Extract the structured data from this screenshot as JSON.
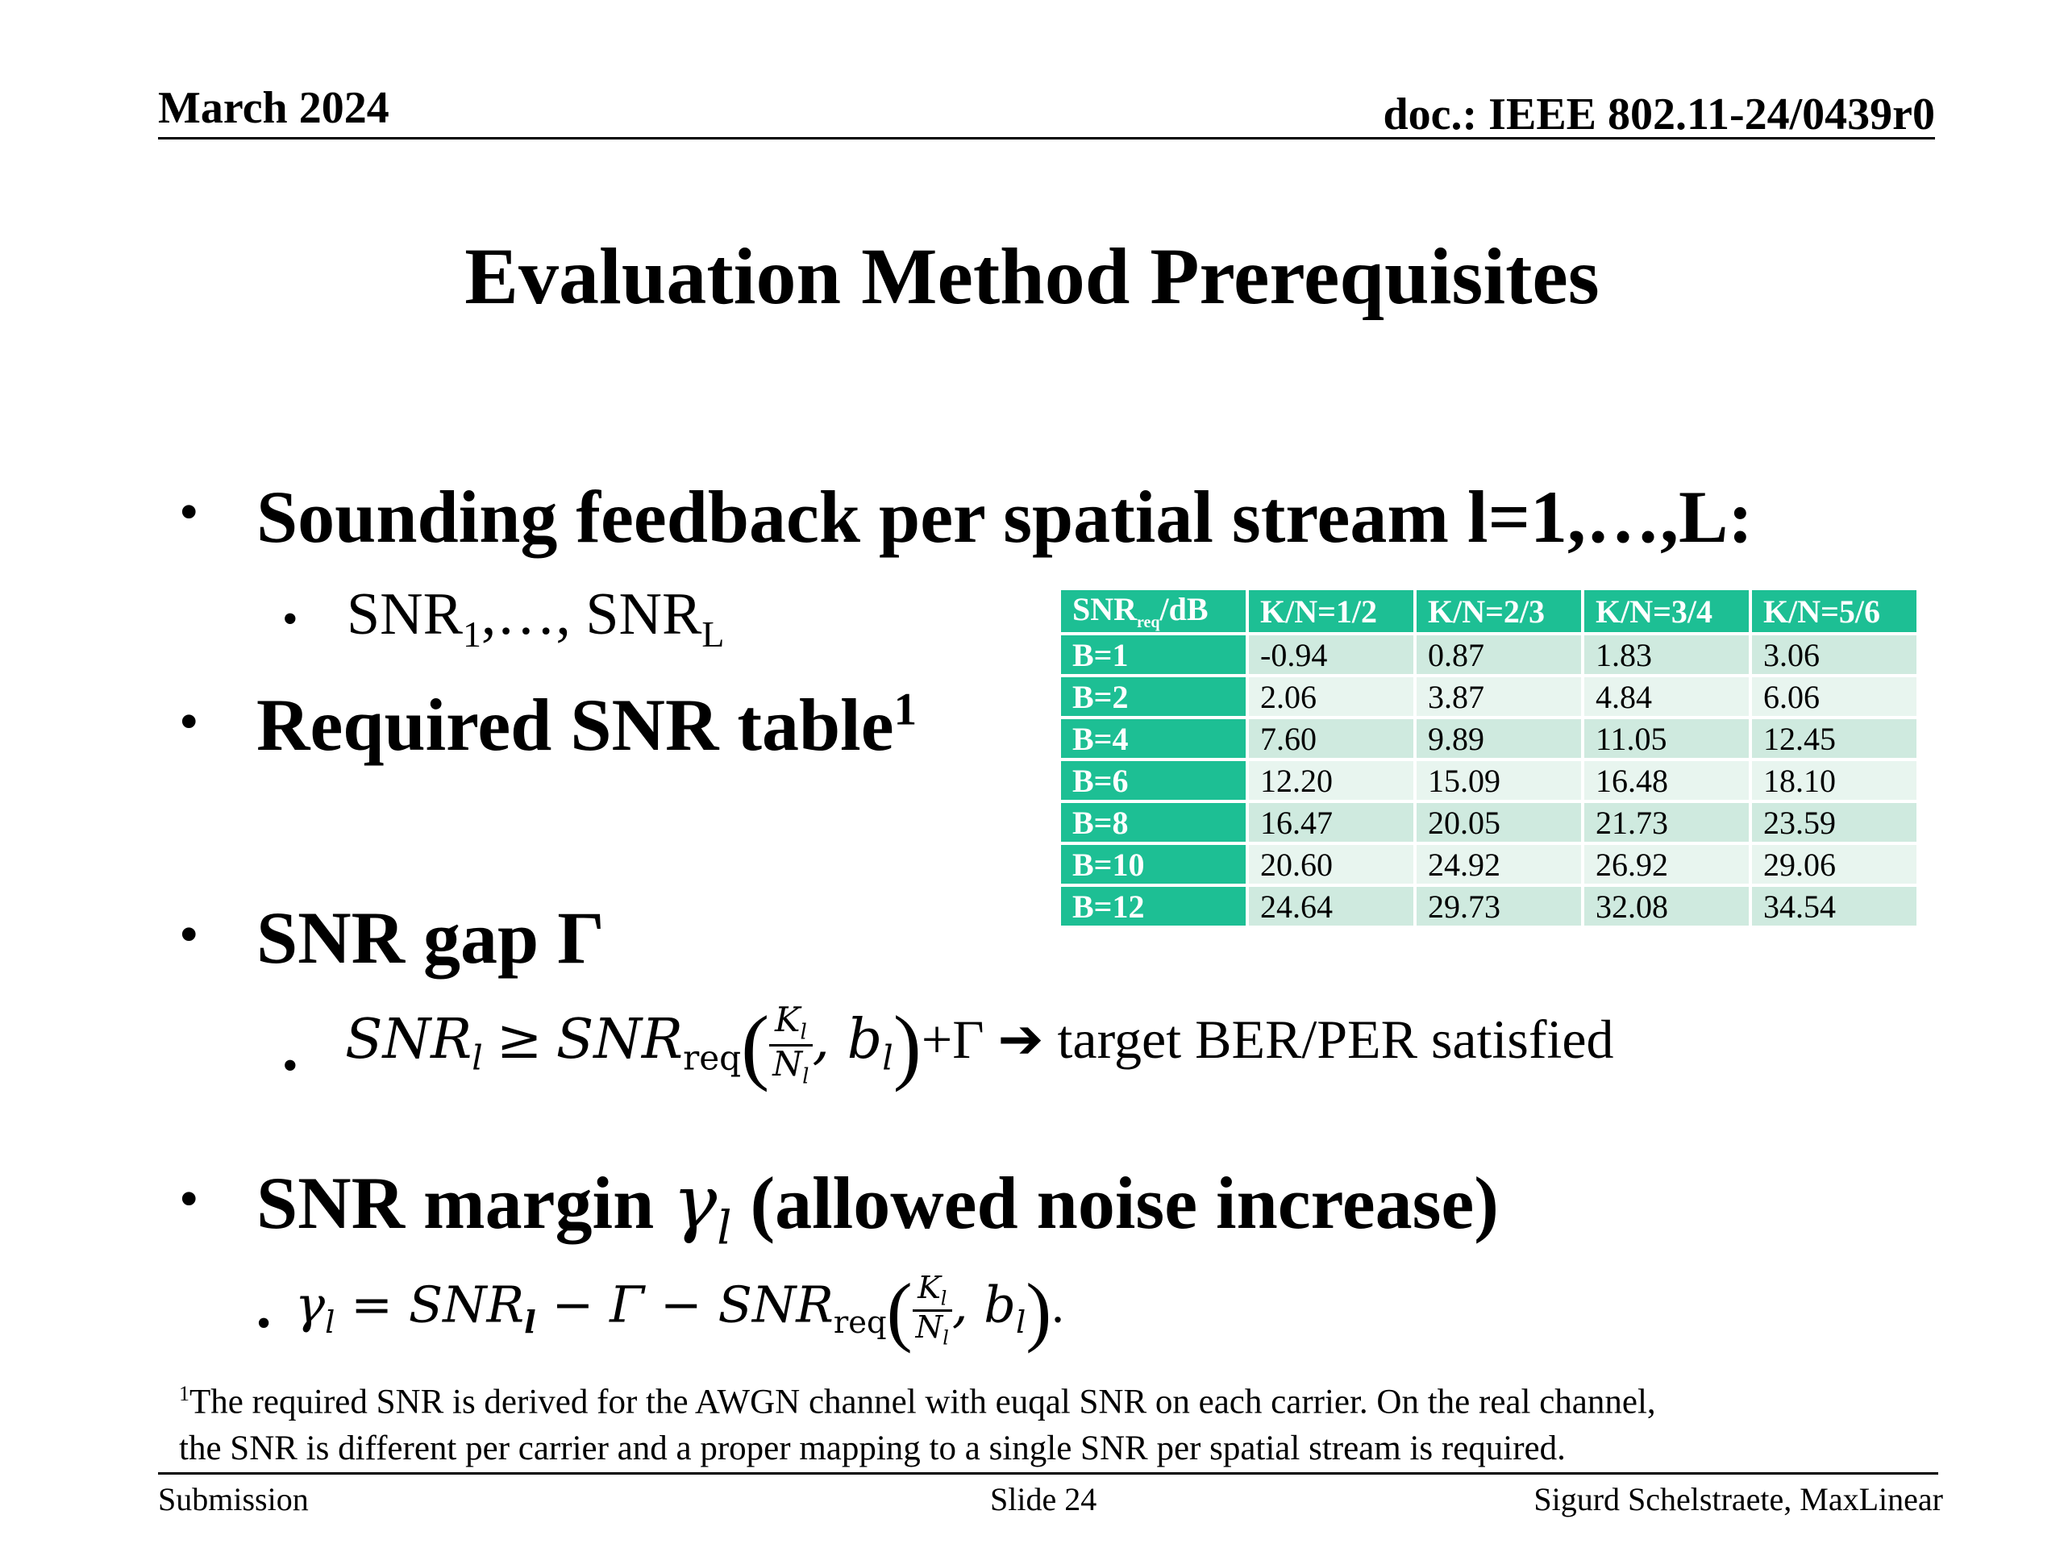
{
  "header": {
    "date": "March 2024",
    "doc_id": "doc.: IEEE 802.11-24/0439r0"
  },
  "title": "Evaluation Method Prerequisites",
  "bullets": {
    "b1": "Sounding feedback per spatial stream l=1,…,L:",
    "b1_sub": {
      "snr": "SNR",
      "sub1": "1",
      "mid": ",…, SNR",
      "subL": "L"
    },
    "b2": "Required SNR table",
    "b2_sup": "1",
    "b3": "SNR gap Γ",
    "b3_sub": {
      "lhs": "SNR",
      "lhs_sub": "l",
      "geq": "≥",
      "rhs": "SNR",
      "rhs_sub": "req",
      "frac_num": "K",
      "frac_num_sub": "l",
      "frac_den": "N",
      "frac_den_sub": "l",
      "b": ", b",
      "b_sub": "l",
      "plus": "+Γ",
      "arrow": "➔",
      "text": "target BER/PER satisfied"
    },
    "b4": "SNR margin",
    "b4_gamma": "γ",
    "b4_gamma_sub": "l",
    "b4_rest": "(allowed noise increase)",
    "b4_sub": {
      "gamma": "γ",
      "gamma_sub": "l",
      "eq": " = SNR",
      "eq_sub": "l",
      "minus": " − Γ − SNR",
      "req_sub": "req",
      "frac_num": "K",
      "frac_num_sub": "l",
      "frac_den": "N",
      "frac_den_sub": "l",
      "b": ", b",
      "b_sub": "l",
      "end": "."
    }
  },
  "table": {
    "corner_main": "SNR",
    "corner_sub": "req",
    "corner_rest": "/dB",
    "columns": [
      "K/N=1/2",
      "K/N=2/3",
      "K/N=3/4",
      "K/N=5/6"
    ],
    "rows": [
      {
        "label": "B=1",
        "values": [
          "-0.94",
          "0.87",
          "1.83",
          "3.06"
        ]
      },
      {
        "label": "B=2",
        "values": [
          "2.06",
          "3.87",
          "4.84",
          "6.06"
        ]
      },
      {
        "label": "B=4",
        "values": [
          "7.60",
          "9.89",
          "11.05",
          "12.45"
        ]
      },
      {
        "label": "B=6",
        "values": [
          "12.20",
          "15.09",
          "16.48",
          "18.10"
        ]
      },
      {
        "label": "B=8",
        "values": [
          "16.47",
          "20.05",
          "21.73",
          "23.59"
        ]
      },
      {
        "label": "B=10",
        "values": [
          "20.60",
          "24.92",
          "26.92",
          "29.06"
        ]
      },
      {
        "label": "B=12",
        "values": [
          "24.64",
          "29.73",
          "32.08",
          "34.54"
        ]
      }
    ],
    "colors": {
      "header": "#1dbf94",
      "odd": "#cfeadf",
      "even": "#e8f5ef"
    }
  },
  "footnote": {
    "mark": "1",
    "line1": "The required SNR is derived for the AWGN channel with euqal SNR on each carrier. On the real channel,",
    "line2": "the SNR is different per carrier and a proper mapping to a single SNR per spatial stream is required."
  },
  "footer": {
    "left": "Submission",
    "center": "Slide 24",
    "right": "Sigurd Schelstraete, MaxLinear"
  }
}
